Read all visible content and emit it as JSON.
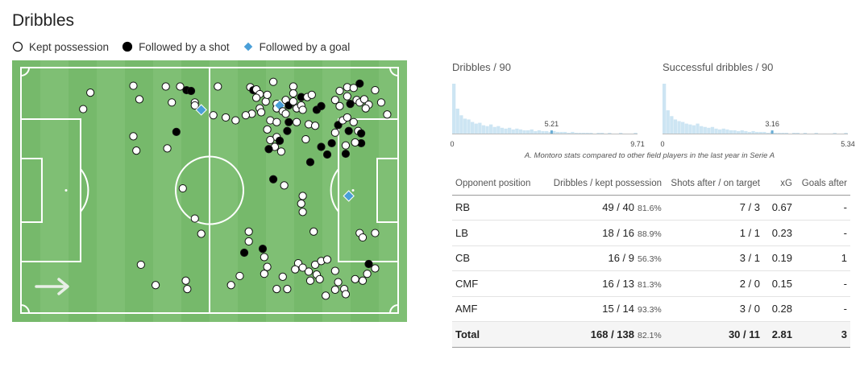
{
  "title": "Dribbles",
  "legend": {
    "kept": "Kept possession",
    "shot": "Followed by a shot",
    "goal": "Followed by a goal"
  },
  "colors": {
    "pitch": "#7fbf74",
    "stripe": "#76b96b",
    "lines": "#ffffff",
    "kept": "#ffffff",
    "shot": "#000000",
    "goal": "#4a9fd8",
    "hist_bar": "#cde5f3",
    "hist_mark": "#6aaed6"
  },
  "histograms": [
    {
      "title": "Dribbles / 90",
      "min_label": "0",
      "max_label": "9.71",
      "max": 9.71,
      "value": 5.21,
      "value_label": "5.21",
      "bars": [
        60,
        30,
        22,
        18,
        17,
        14,
        12,
        13,
        10,
        9,
        11,
        8,
        9,
        7,
        6,
        7,
        5,
        6,
        5,
        4,
        4,
        5,
        3,
        4,
        3,
        3,
        2,
        3,
        2,
        2,
        2,
        1,
        2,
        1,
        1,
        1,
        1,
        1,
        0,
        1,
        1,
        0,
        1,
        0,
        0,
        1,
        0,
        0,
        0,
        1
      ]
    },
    {
      "title": "Successful dribbles / 90",
      "min_label": "0",
      "max_label": "5.34",
      "max": 5.34,
      "value": 3.16,
      "value_label": "3.16",
      "bars": [
        60,
        28,
        21,
        17,
        15,
        14,
        12,
        11,
        10,
        12,
        9,
        8,
        7,
        8,
        6,
        5,
        6,
        5,
        4,
        4,
        3,
        4,
        3,
        2,
        3,
        2,
        2,
        2,
        1,
        2,
        1,
        1,
        1,
        1,
        0,
        1,
        1,
        0,
        1,
        0,
        0,
        1,
        0,
        0,
        0,
        0,
        1,
        0,
        0,
        1
      ]
    }
  ],
  "hist_note": "A. Montoro stats compared to other field players in the last year in Serie A",
  "table": {
    "headers": [
      "Opponent position",
      "Dribbles / kept possession",
      "Shots after / on target",
      "xG",
      "Goals after"
    ],
    "rows": [
      {
        "pos": "RB",
        "drib": "49 / 40",
        "pct": "81.6%",
        "shots": "7 / 3",
        "xg": "0.67",
        "goals": "-"
      },
      {
        "pos": "LB",
        "drib": "18 / 16",
        "pct": "88.9%",
        "shots": "1 / 1",
        "xg": "0.23",
        "goals": "-"
      },
      {
        "pos": "CB",
        "drib": "16 / 9",
        "pct": "56.3%",
        "shots": "3 / 1",
        "xg": "0.19",
        "goals": "1"
      },
      {
        "pos": "CMF",
        "drib": "16 / 13",
        "pct": "81.3%",
        "shots": "2 / 0",
        "xg": "0.15",
        "goals": "-"
      },
      {
        "pos": "AMF",
        "drib": "15 / 14",
        "pct": "93.3%",
        "shots": "3 / 0",
        "xg": "0.28",
        "goals": "-"
      }
    ],
    "total": {
      "pos": "Total",
      "drib": "168 / 138",
      "pct": "82.1%",
      "shots": "30 / 11",
      "xg": "2.81",
      "goals": "3"
    }
  },
  "chart_data": {
    "type": "scatter",
    "description_units": "pitch percent: x 0-100 left to right (attacking direction right), y 0-100 top to bottom",
    "xlim": [
      0,
      100
    ],
    "ylim": [
      0,
      100
    ],
    "attack_direction": "right",
    "points": [
      {
        "x": 18.4,
        "y": 10.2,
        "o": "kept"
      },
      {
        "x": 16.5,
        "y": 16.9,
        "o": "kept"
      },
      {
        "x": 29.8,
        "y": 7.4,
        "o": "kept"
      },
      {
        "x": 31.4,
        "y": 12.9,
        "o": "kept"
      },
      {
        "x": 38.4,
        "y": 7.7,
        "o": "kept"
      },
      {
        "x": 42.2,
        "y": 7.7,
        "o": "kept"
      },
      {
        "x": 43.9,
        "y": 9.2,
        "o": "shot"
      },
      {
        "x": 45.1,
        "y": 9.5,
        "o": "shot"
      },
      {
        "x": 40.0,
        "y": 14.2,
        "o": "kept"
      },
      {
        "x": 46.1,
        "y": 14.2,
        "o": "kept"
      },
      {
        "x": 46.1,
        "y": 15.4,
        "o": "kept"
      },
      {
        "x": 47.8,
        "y": 17.2,
        "o": "goal"
      },
      {
        "x": 51.0,
        "y": 19.4,
        "o": "kept"
      },
      {
        "x": 41.2,
        "y": 26.2,
        "o": "shot"
      },
      {
        "x": 29.8,
        "y": 28.0,
        "o": "kept"
      },
      {
        "x": 30.6,
        "y": 33.8,
        "o": "kept"
      },
      {
        "x": 38.8,
        "y": 32.9,
        "o": "kept"
      },
      {
        "x": 52.2,
        "y": 7.7,
        "o": "kept"
      },
      {
        "x": 54.3,
        "y": 20.3,
        "o": "kept"
      },
      {
        "x": 56.9,
        "y": 21.5,
        "o": "kept"
      },
      {
        "x": 60.8,
        "y": 8.0,
        "o": "kept"
      },
      {
        "x": 61.6,
        "y": 9.2,
        "o": "shot"
      },
      {
        "x": 62.4,
        "y": 8.9,
        "o": "kept"
      },
      {
        "x": 63.3,
        "y": 10.8,
        "o": "kept"
      },
      {
        "x": 62.4,
        "y": 12.3,
        "o": "kept"
      },
      {
        "x": 64.9,
        "y": 13.8,
        "o": "kept"
      },
      {
        "x": 63.3,
        "y": 16.6,
        "o": "kept"
      },
      {
        "x": 61.2,
        "y": 18.8,
        "o": "kept"
      },
      {
        "x": 63.7,
        "y": 18.2,
        "o": "kept"
      },
      {
        "x": 59.6,
        "y": 19.4,
        "o": "kept"
      },
      {
        "x": 66.9,
        "y": 5.8,
        "o": "kept"
      },
      {
        "x": 65.3,
        "y": 11.1,
        "o": "kept"
      },
      {
        "x": 67.8,
        "y": 14.8,
        "o": "kept"
      },
      {
        "x": 67.8,
        "y": 16.6,
        "o": "kept"
      },
      {
        "x": 68.6,
        "y": 15.4,
        "o": "goal"
      },
      {
        "x": 69.4,
        "y": 17.8,
        "o": "kept"
      },
      {
        "x": 70.2,
        "y": 13.2,
        "o": "kept"
      },
      {
        "x": 70.2,
        "y": 18.8,
        "o": "kept"
      },
      {
        "x": 71.0,
        "y": 15.4,
        "o": "shot"
      },
      {
        "x": 72.2,
        "y": 13.8,
        "o": "kept"
      },
      {
        "x": 73.1,
        "y": 16.6,
        "o": "kept"
      },
      {
        "x": 74.3,
        "y": 15.4,
        "o": "kept"
      },
      {
        "x": 72.2,
        "y": 7.7,
        "o": "kept"
      },
      {
        "x": 72.2,
        "y": 10.5,
        "o": "kept"
      },
      {
        "x": 74.3,
        "y": 12.0,
        "o": "shot"
      },
      {
        "x": 74.7,
        "y": 17.2,
        "o": "kept"
      },
      {
        "x": 66.1,
        "y": 21.5,
        "o": "kept"
      },
      {
        "x": 65.3,
        "y": 25.2,
        "o": "kept"
      },
      {
        "x": 67.8,
        "y": 22.2,
        "o": "kept"
      },
      {
        "x": 71.0,
        "y": 22.2,
        "o": "shot"
      },
      {
        "x": 73.1,
        "y": 22.2,
        "o": "kept"
      },
      {
        "x": 70.6,
        "y": 25.8,
        "o": "shot"
      },
      {
        "x": 67.8,
        "y": 28.3,
        "o": "kept"
      },
      {
        "x": 66.1,
        "y": 29.5,
        "o": "kept"
      },
      {
        "x": 68.6,
        "y": 29.8,
        "o": "shot"
      },
      {
        "x": 67.3,
        "y": 32.3,
        "o": "kept"
      },
      {
        "x": 69.0,
        "y": 34.2,
        "o": "kept"
      },
      {
        "x": 65.7,
        "y": 33.2,
        "o": "shot"
      },
      {
        "x": 75.9,
        "y": 12.0,
        "o": "kept"
      },
      {
        "x": 77.1,
        "y": 11.1,
        "o": "kept"
      },
      {
        "x": 78.4,
        "y": 17.2,
        "o": "shot"
      },
      {
        "x": 79.6,
        "y": 15.7,
        "o": "shot"
      },
      {
        "x": 76.3,
        "y": 23.1,
        "o": "kept"
      },
      {
        "x": 78.0,
        "y": 23.7,
        "o": "kept"
      },
      {
        "x": 75.5,
        "y": 29.2,
        "o": "kept"
      },
      {
        "x": 79.6,
        "y": 32.3,
        "o": "shot"
      },
      {
        "x": 76.7,
        "y": 38.5,
        "o": "shot"
      },
      {
        "x": 81.2,
        "y": 35.4,
        "o": "shot"
      },
      {
        "x": 82.4,
        "y": 30.8,
        "o": "shot"
      },
      {
        "x": 83.3,
        "y": 26.5,
        "o": "kept"
      },
      {
        "x": 84.1,
        "y": 23.4,
        "o": "shot"
      },
      {
        "x": 85.3,
        "y": 21.5,
        "o": "kept"
      },
      {
        "x": 83.3,
        "y": 13.2,
        "o": "kept"
      },
      {
        "x": 84.5,
        "y": 15.7,
        "o": "kept"
      },
      {
        "x": 84.5,
        "y": 9.5,
        "o": "kept"
      },
      {
        "x": 86.5,
        "y": 8.0,
        "o": "kept"
      },
      {
        "x": 88.2,
        "y": 8.3,
        "o": "kept"
      },
      {
        "x": 89.8,
        "y": 6.5,
        "o": "shot"
      },
      {
        "x": 86.5,
        "y": 11.7,
        "o": "kept"
      },
      {
        "x": 87.3,
        "y": 14.8,
        "o": "shot"
      },
      {
        "x": 89.0,
        "y": 13.2,
        "o": "kept"
      },
      {
        "x": 89.8,
        "y": 14.2,
        "o": "kept"
      },
      {
        "x": 91.0,
        "y": 12.9,
        "o": "kept"
      },
      {
        "x": 92.2,
        "y": 15.1,
        "o": "kept"
      },
      {
        "x": 91.4,
        "y": 16.6,
        "o": "kept"
      },
      {
        "x": 93.9,
        "y": 9.2,
        "o": "kept"
      },
      {
        "x": 95.5,
        "y": 14.2,
        "o": "kept"
      },
      {
        "x": 97.1,
        "y": 19.1,
        "o": "kept"
      },
      {
        "x": 86.5,
        "y": 20.3,
        "o": "kept"
      },
      {
        "x": 88.2,
        "y": 22.2,
        "o": "kept"
      },
      {
        "x": 86.9,
        "y": 25.8,
        "o": "shot"
      },
      {
        "x": 89.4,
        "y": 25.8,
        "o": "kept"
      },
      {
        "x": 90.2,
        "y": 26.8,
        "o": "shot"
      },
      {
        "x": 90.2,
        "y": 30.8,
        "o": "shot"
      },
      {
        "x": 88.6,
        "y": 30.5,
        "o": "kept"
      },
      {
        "x": 86.1,
        "y": 31.7,
        "o": "kept"
      },
      {
        "x": 86.1,
        "y": 35.1,
        "o": "shot"
      },
      {
        "x": 86.9,
        "y": 52.3,
        "o": "goal"
      },
      {
        "x": 42.9,
        "y": 49.2,
        "o": "kept"
      },
      {
        "x": 46.1,
        "y": 61.5,
        "o": "kept"
      },
      {
        "x": 47.8,
        "y": 67.7,
        "o": "kept"
      },
      {
        "x": 66.9,
        "y": 45.5,
        "o": "shot"
      },
      {
        "x": 69.8,
        "y": 48.0,
        "o": "kept"
      },
      {
        "x": 74.7,
        "y": 52.3,
        "o": "kept"
      },
      {
        "x": 74.3,
        "y": 55.4,
        "o": "kept"
      },
      {
        "x": 74.7,
        "y": 58.8,
        "o": "kept"
      },
      {
        "x": 77.6,
        "y": 66.8,
        "o": "kept"
      },
      {
        "x": 60.4,
        "y": 66.8,
        "o": "kept"
      },
      {
        "x": 60.4,
        "y": 70.8,
        "o": "kept"
      },
      {
        "x": 59.2,
        "y": 75.4,
        "o": "shot"
      },
      {
        "x": 64.1,
        "y": 73.8,
        "o": "shot"
      },
      {
        "x": 64.5,
        "y": 77.2,
        "o": "kept"
      },
      {
        "x": 65.3,
        "y": 81.2,
        "o": "kept"
      },
      {
        "x": 64.5,
        "y": 84.0,
        "o": "kept"
      },
      {
        "x": 69.4,
        "y": 85.2,
        "o": "kept"
      },
      {
        "x": 73.5,
        "y": 79.7,
        "o": "kept"
      },
      {
        "x": 72.7,
        "y": 82.2,
        "o": "kept"
      },
      {
        "x": 74.7,
        "y": 81.5,
        "o": "kept"
      },
      {
        "x": 76.3,
        "y": 83.1,
        "o": "kept"
      },
      {
        "x": 78.0,
        "y": 80.3,
        "o": "kept"
      },
      {
        "x": 79.6,
        "y": 78.8,
        "o": "kept"
      },
      {
        "x": 81.2,
        "y": 78.2,
        "o": "kept"
      },
      {
        "x": 78.4,
        "y": 84.3,
        "o": "kept"
      },
      {
        "x": 76.7,
        "y": 86.8,
        "o": "kept"
      },
      {
        "x": 79.2,
        "y": 86.2,
        "o": "kept"
      },
      {
        "x": 83.3,
        "y": 82.8,
        "o": "kept"
      },
      {
        "x": 84.1,
        "y": 87.4,
        "o": "kept"
      },
      {
        "x": 83.3,
        "y": 90.5,
        "o": "kept"
      },
      {
        "x": 85.7,
        "y": 90.2,
        "o": "kept"
      },
      {
        "x": 86.1,
        "y": 92.3,
        "o": "kept"
      },
      {
        "x": 80.8,
        "y": 92.9,
        "o": "kept"
      },
      {
        "x": 88.6,
        "y": 86.2,
        "o": "kept"
      },
      {
        "x": 90.6,
        "y": 86.8,
        "o": "kept"
      },
      {
        "x": 91.8,
        "y": 84.0,
        "o": "kept"
      },
      {
        "x": 93.9,
        "y": 81.8,
        "o": "kept"
      },
      {
        "x": 92.2,
        "y": 80.0,
        "o": "shot"
      },
      {
        "x": 89.8,
        "y": 67.4,
        "o": "kept"
      },
      {
        "x": 90.6,
        "y": 69.2,
        "o": "kept"
      },
      {
        "x": 93.9,
        "y": 67.4,
        "o": "kept"
      },
      {
        "x": 31.8,
        "y": 80.3,
        "o": "kept"
      },
      {
        "x": 35.7,
        "y": 88.6,
        "o": "kept"
      },
      {
        "x": 43.7,
        "y": 86.8,
        "o": "kept"
      },
      {
        "x": 44.1,
        "y": 90.2,
        "o": "kept"
      },
      {
        "x": 55.7,
        "y": 88.6,
        "o": "kept"
      },
      {
        "x": 58.0,
        "y": 84.9,
        "o": "kept"
      },
      {
        "x": 67.8,
        "y": 90.2,
        "o": "kept"
      },
      {
        "x": 70.6,
        "y": 90.2,
        "o": "kept"
      }
    ]
  }
}
